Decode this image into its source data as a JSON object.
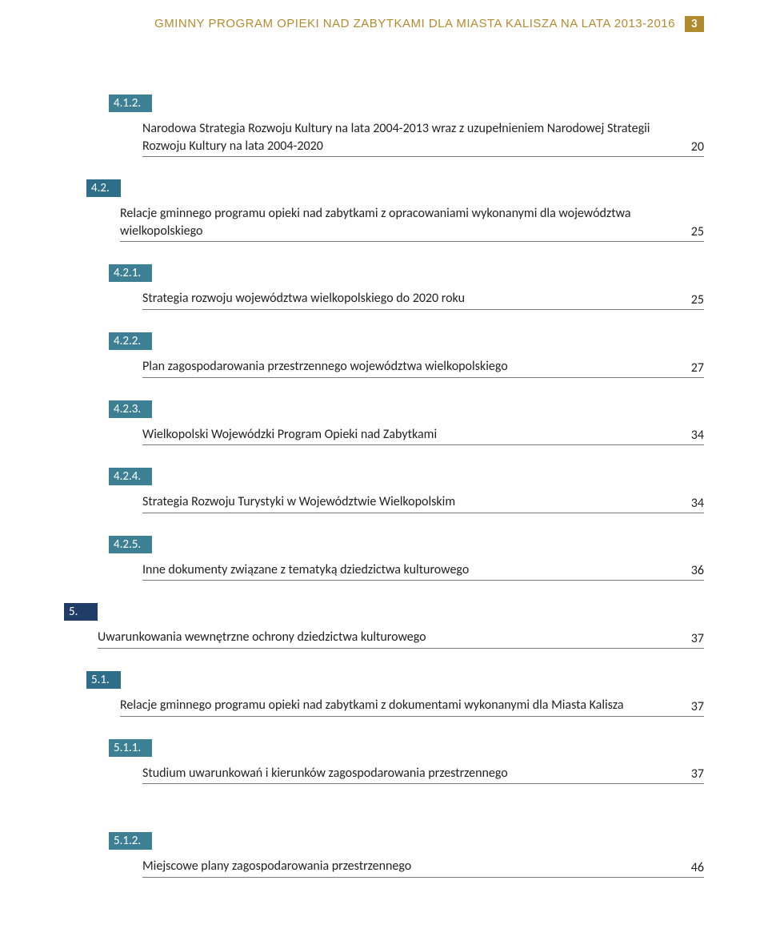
{
  "header": {
    "title": "GMINNY PROGRAM OPIEKI NAD ZABYTKAMI DLA MIASTA KALISZA NA LATA 2013-2016",
    "page_number": "3",
    "title_color": "#b38b2f",
    "badge_bg": "#b38b2f",
    "badge_fg": "#ffffff"
  },
  "colors": {
    "dark": "#1f3d66",
    "teal": "#2f6e88",
    "teal2": "#3d8093",
    "rule": "#7a7a7a",
    "text": "#222222"
  },
  "toc": [
    {
      "num": "4.1.2.",
      "box": "teal2",
      "lvl": 2,
      "title": "Narodowa Strategia Rozwoju Kultury na lata 2004-2013 wraz z uzupełnieniem Narodowej Strategii Rozwoju Kultury na lata 2004-2020",
      "page": "20"
    },
    {
      "num": "4.2.",
      "box": "teal",
      "lvl": 1,
      "title": "Relacje gminnego programu opieki nad zabytkami z opracowaniami wykonanymi dla województwa wielkopolskiego",
      "page": "25"
    },
    {
      "num": "4.2.1.",
      "box": "teal2",
      "lvl": 2,
      "title": "Strategia rozwoju województwa wielkopolskiego do 2020 roku",
      "page": "25"
    },
    {
      "num": "4.2.2.",
      "box": "teal2",
      "lvl": 2,
      "title": "Plan zagospodarowania przestrzennego województwa wielkopolskiego",
      "page": "27"
    },
    {
      "num": "4.2.3.",
      "box": "teal2",
      "lvl": 2,
      "title": "Wielkopolski Wojewódzki Program Opieki nad Zabytkami",
      "page": "34"
    },
    {
      "num": "4.2.4.",
      "box": "teal2",
      "lvl": 2,
      "title": "Strategia Rozwoju Turystyki w Województwie Wielkopolskim",
      "page": "34"
    },
    {
      "num": "4.2.5.",
      "box": "teal2",
      "lvl": 2,
      "title": "Inne dokumenty związane z tematyką dziedzictwa kulturowego",
      "page": "36"
    },
    {
      "num": "5.",
      "box": "dark",
      "lvl": 0,
      "title": "Uwarunkowania wewnętrzne ochrony dziedzictwa kulturowego",
      "page": "37"
    },
    {
      "num": "5.1.",
      "box": "teal",
      "lvl": 1,
      "title": "Relacje gminnego programu opieki nad zabytkami z dokumentami wykonanymi dla Miasta Kalisza",
      "page": "37"
    },
    {
      "num": "5.1.1.",
      "box": "teal2",
      "lvl": 2,
      "title": "Studium uwarunkowań i kierunków zagospodarowania przestrzennego",
      "page": "37"
    },
    {
      "num": "5.1.2.",
      "box": "teal2",
      "lvl": 2,
      "title": "Miejscowe plany zagospodarowania przestrzennego",
      "page": "46",
      "extra_gap": true
    }
  ]
}
